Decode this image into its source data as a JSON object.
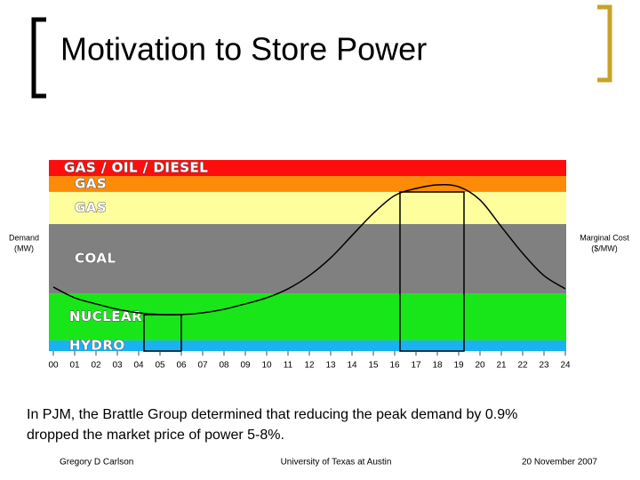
{
  "title": "Motivation to Store Power",
  "chart_data": {
    "type": "line",
    "categories": [
      "00",
      "01",
      "02",
      "03",
      "04",
      "05",
      "06",
      "07",
      "08",
      "09",
      "10",
      "11",
      "12",
      "13",
      "14",
      "15",
      "16",
      "17",
      "18",
      "19",
      "20",
      "21",
      "22",
      "23",
      "24"
    ],
    "values": [
      33.5,
      27.9,
      24.7,
      21.9,
      20,
      19.1,
      19.1,
      20,
      21.9,
      24.7,
      27.9,
      32.6,
      39.5,
      48.8,
      60.5,
      72.1,
      81.4,
      85.1,
      87,
      86,
      79.1,
      65.1,
      51.2,
      39.5,
      32.6
    ],
    "color": "#000000",
    "ylim": [
      0,
      100
    ],
    "y_label": [
      "Demand",
      "(MW)"
    ],
    "y2_label": [
      "Marginal Cost",
      "($/MW)"
    ],
    "bands": [
      {
        "label": "HYDRO",
        "color": "#1ab2f0",
        "from": 0,
        "to": 5.6
      },
      {
        "label": "NUCLEAR",
        "color": "#19e619",
        "from": 5.6,
        "to": 30.2
      },
      {
        "label": "COAL",
        "color": "#808080",
        "from": 30.2,
        "to": 66.5
      },
      {
        "label": "GAS",
        "color": "#fefe9c",
        "from": 66.5,
        "to": 83.3
      },
      {
        "label": "GAS",
        "color": "#fd8b08",
        "from": 83.3,
        "to": 91.6
      },
      {
        "label": "GAS / OIL / DIESEL",
        "color": "#fe0d0d",
        "from": 91.6,
        "to": 100
      }
    ]
  },
  "body": [
    "In PJM, the Brattle Group determined that reducing the peak demand by 0.9%",
    "dropped the market price of power 5-8%."
  ],
  "footer": {
    "author": "Gregory D Carlson",
    "institution": "University of Texas at Austin",
    "date": "20 November 2007"
  }
}
